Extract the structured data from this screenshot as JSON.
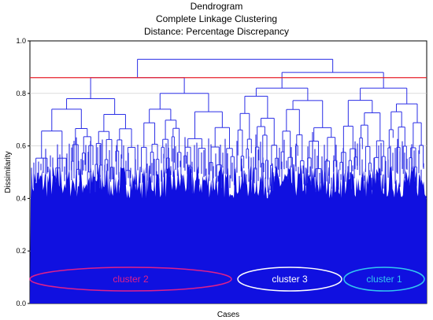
{
  "chart_data": {
    "type": "dendrogram",
    "title": "Dendrogram",
    "subtitle": "Complete Linkage Clustering",
    "subtitle2": "Distance: Percentage Discrepancy",
    "xlabel": "Cases",
    "ylabel": "Dissimilarity",
    "ylim": [
      0.0,
      1.0
    ],
    "yticks": [
      "0.0",
      "0.2",
      "0.4",
      "0.6",
      "0.8",
      "1.0"
    ],
    "ytick_values": [
      0.0,
      0.2,
      0.4,
      0.6,
      0.8,
      1.0
    ],
    "cutoff": {
      "value": 0.86,
      "color": "#e8202a"
    },
    "line_color": "#2a2ee6",
    "fill_color": "#1010e0",
    "grid": true,
    "top_merges": {
      "root": 0.93,
      "left_group": 0.86,
      "right_group": 0.88,
      "cluster2_sub": [
        0.78,
        0.81,
        0.8
      ],
      "cluster3": 0.82,
      "cluster1": 0.82
    },
    "clusters": [
      {
        "label": "cluster 2",
        "color": "#e0208a"
      },
      {
        "label": "cluster 3",
        "color": "#ffffff"
      },
      {
        "label": "cluster 1",
        "color": "#33c8f0"
      }
    ]
  }
}
